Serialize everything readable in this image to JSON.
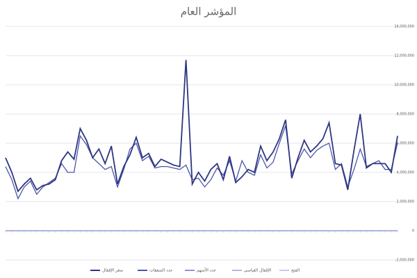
{
  "chart_data": {
    "type": "line",
    "title": "المؤشر العام",
    "categories": [
      null,
      null,
      null,
      null,
      null,
      null,
      null,
      null,
      null,
      null,
      null,
      null,
      null,
      null,
      null,
      null,
      null,
      null,
      null,
      null,
      null,
      null,
      null,
      null,
      null,
      null,
      null,
      null,
      null,
      null,
      null,
      null,
      null,
      null,
      null,
      null,
      null,
      null,
      null,
      null,
      null,
      null,
      null,
      null,
      null,
      null,
      null,
      null,
      null,
      null,
      null,
      null,
      null,
      null,
      null,
      null,
      null,
      null,
      null,
      null,
      null,
      null,
      null,
      null
    ],
    "series": [
      {
        "name": "سعر الإقفال",
        "color": "#2e3580",
        "values": [
          5000000,
          4000000,
          2700000,
          3200000,
          3600000,
          2800000,
          3100000,
          3200000,
          3500000,
          4800000,
          5400000,
          4900000,
          7000000,
          6200000,
          5000000,
          5600000,
          4600000,
          5800000,
          3200000,
          4400000,
          5200000,
          6400000,
          5000000,
          5300000,
          4400000,
          4900000,
          4700000,
          4500000,
          4400000,
          11700000,
          3200000,
          4000000,
          3400000,
          4200000,
          4600000,
          3500000,
          5100000,
          3300000,
          3700000,
          4200000,
          4000000,
          5800000,
          4800000,
          5400000,
          6300000,
          7600000,
          3600000,
          5000000,
          6200000,
          5400000,
          5800000,
          6300000,
          7400000,
          4600000,
          4500000,
          2800000,
          5500000,
          8000000,
          4300000,
          4600000,
          4600000,
          4600000,
          4000000,
          6500000
        ]
      },
      {
        "name": "عدد الصفقات",
        "color": "#4a55a8",
        "values": [
          4400000,
          3500000,
          2200000,
          3000000,
          3400000,
          2500000,
          3000000,
          3300000,
          3600000,
          4600000,
          4000000,
          4000000,
          6500000,
          5900000,
          5000000,
          4600000,
          4200000,
          4400000,
          3000000,
          4200000,
          5600000,
          6000000,
          4800000,
          5100000,
          4300000,
          4400000,
          4400000,
          4300000,
          4200000,
          4500000,
          3500000,
          3600000,
          3000000,
          3500000,
          4300000,
          3800000,
          4800000,
          3400000,
          4800000,
          4000000,
          3800000,
          5200000,
          4300000,
          4700000,
          6000000,
          7200000,
          3900000,
          4800000,
          5600000,
          5000000,
          5500000,
          5800000,
          6000000,
          4200000,
          4600000,
          3000000,
          4200000,
          5600000,
          4400000,
          4600000,
          4800000,
          4200000,
          4200000,
          6000000
        ]
      },
      {
        "name": "عدد الأسهم",
        "color": "#8e95d4",
        "values": [
          0,
          0,
          0,
          0,
          0,
          0,
          0,
          0,
          0,
          0,
          0,
          0,
          0,
          0,
          0,
          0,
          0,
          0,
          0,
          0,
          0,
          0,
          0,
          0,
          0,
          0,
          0,
          0,
          0,
          0,
          0,
          0,
          0,
          0,
          0,
          0,
          0,
          0,
          0,
          0,
          0,
          0,
          0,
          0,
          0,
          0,
          0,
          0,
          0,
          0,
          0,
          0,
          0,
          0,
          0,
          0,
          0,
          0,
          0,
          0,
          0,
          0,
          0,
          0
        ]
      },
      {
        "name": "الإقفال القياسي",
        "color": "#b4b8e4",
        "values": [
          0,
          0,
          0,
          0,
          0,
          0,
          0,
          0,
          0,
          0,
          0,
          0,
          0,
          0,
          0,
          0,
          0,
          0,
          0,
          0,
          0,
          0,
          0,
          0,
          0,
          0,
          0,
          0,
          0,
          0,
          0,
          0,
          0,
          0,
          0,
          0,
          0,
          0,
          0,
          0,
          0,
          0,
          0,
          0,
          0,
          0,
          0,
          0,
          0,
          0,
          0,
          0,
          0,
          0,
          0,
          0,
          0,
          0,
          0,
          0,
          0,
          0,
          0,
          0
        ]
      },
      {
        "name": "الفتح",
        "color": "#c9cbec",
        "values": [
          0,
          0,
          0,
          0,
          0,
          0,
          0,
          0,
          0,
          0,
          0,
          0,
          0,
          0,
          0,
          0,
          0,
          0,
          0,
          0,
          0,
          0,
          0,
          0,
          0,
          0,
          0,
          0,
          0,
          0,
          0,
          0,
          0,
          0,
          0,
          0,
          0,
          0,
          0,
          0,
          0,
          0,
          0,
          0,
          0,
          0,
          0,
          0,
          0,
          0,
          0,
          0,
          0,
          0,
          0,
          0,
          0,
          0,
          0,
          0,
          0,
          0,
          0,
          0
        ]
      }
    ],
    "ylim": [
      -2000000,
      14000000
    ],
    "yticks": [
      {
        "value": -2000000,
        "label": "-2,000,000"
      },
      0,
      {
        "value": 2000000,
        "label": "2,000,000"
      },
      {
        "value": 4000000,
        "label": "4,000,000"
      },
      {
        "value": 6000000,
        "label": "6,000,000"
      },
      {
        "value": 8000000,
        "label": "8,000,000"
      },
      {
        "value": 10000000,
        "label": "10,000,000"
      },
      {
        "value": 12000000,
        "label": "12,000,000"
      },
      {
        "value": 14000000,
        "label": "14,000,000"
      }
    ],
    "grid": true,
    "legend": "bottom"
  }
}
